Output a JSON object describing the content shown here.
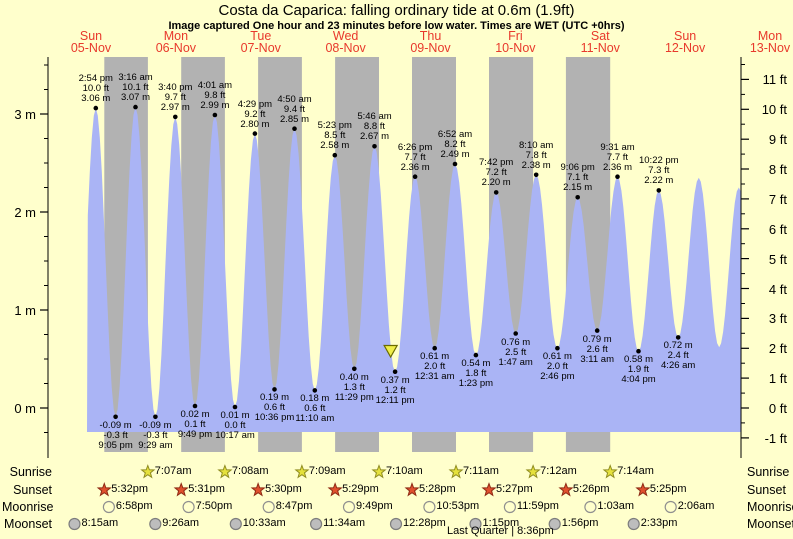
{
  "title": "Costa da Caparica: falling  ordinary tide at 0.6m (1.9ft)",
  "subtitle": "Image captured One hour and 23 minutes before low water. Times are WET (UTC +0hrs)",
  "days": [
    {
      "name": "Sun",
      "date": "05-Nov"
    },
    {
      "name": "Mon",
      "date": "06-Nov"
    },
    {
      "name": "Tue",
      "date": "07-Nov"
    },
    {
      "name": "Wed",
      "date": "08-Nov"
    },
    {
      "name": "Thu",
      "date": "09-Nov"
    },
    {
      "name": "Fri",
      "date": "10-Nov"
    },
    {
      "name": "Sat",
      "date": "11-Nov"
    },
    {
      "name": "Sun",
      "date": "12-Nov"
    },
    {
      "name": "Mon",
      "date": "13-Nov"
    }
  ],
  "chart_data": {
    "type": "area",
    "title": "Costa da Caparica: falling  ordinary tide at 0.6m (1.9ft)",
    "ylabel_left": "height (m)",
    "ylabel_right": "height (ft)",
    "ylim_m": [
      -0.45,
      3.6
    ],
    "y_axis_left_ticks": [
      "3 m",
      "2 m",
      "1 m",
      "0 m"
    ],
    "y_axis_right_ticks": [
      "11 ft",
      "10 ft",
      "9 ft",
      "8 ft",
      "7 ft",
      "6 ft",
      "5 ft",
      "4 ft",
      "3 ft",
      "2 ft",
      "1 ft",
      "0 ft",
      "-1 ft"
    ],
    "highs": [
      {
        "day": 0,
        "time": "2:54 pm",
        "ft": "10.0",
        "m": "3.06"
      },
      {
        "day": 1,
        "time": "3:16 am",
        "ft": "10.1",
        "m": "3.07"
      },
      {
        "day": 1,
        "time": "3:40 pm",
        "ft": "9.7",
        "m": "2.97"
      },
      {
        "day": 2,
        "time": "4:01 am",
        "ft": "9.8",
        "m": "2.99"
      },
      {
        "day": 2,
        "time": "4:29 pm",
        "ft": "9.2",
        "m": "2.80"
      },
      {
        "day": 3,
        "time": "4:50 am",
        "ft": "9.4",
        "m": "2.85"
      },
      {
        "day": 3,
        "time": "5:23 pm",
        "ft": "8.5",
        "m": "2.58"
      },
      {
        "day": 4,
        "time": "5:46 am",
        "ft": "8.8",
        "m": "2.67"
      },
      {
        "day": 4,
        "time": "6:26 pm",
        "ft": "7.7",
        "m": "2.36"
      },
      {
        "day": 5,
        "time": "6:52 am",
        "ft": "8.2",
        "m": "2.49"
      },
      {
        "day": 5,
        "time": "7:42 pm",
        "ft": "7.2",
        "m": "2.20"
      },
      {
        "day": 6,
        "time": "8:10 am",
        "ft": "7.8",
        "m": "2.38"
      },
      {
        "day": 6,
        "time": "9:06 pm",
        "ft": "7.1",
        "m": "2.15"
      },
      {
        "day": 7,
        "time": "9:31 am",
        "ft": "7.7",
        "m": "2.36"
      },
      {
        "day": 7,
        "time": "10:22 pm",
        "ft": "7.3",
        "m": "2.22"
      }
    ],
    "lows": [
      {
        "day": 0,
        "time": "9:05 pm",
        "ft": "-0.3",
        "m": "-0.09"
      },
      {
        "day": 1,
        "time": "9:29 am",
        "ft": "-0.3",
        "m": "-0.09"
      },
      {
        "day": 1,
        "time": "9:49 pm",
        "ft": "0.1",
        "m": "0.02"
      },
      {
        "day": 2,
        "time": "10:17 am",
        "ft": "0.0",
        "m": "0.01"
      },
      {
        "day": 2,
        "time": "10:36 pm",
        "ft": "0.6",
        "m": "0.19"
      },
      {
        "day": 3,
        "time": "11:10 am",
        "ft": "0.6",
        "m": "0.18"
      },
      {
        "day": 3,
        "time": "11:29 pm",
        "ft": "1.3",
        "m": "0.40"
      },
      {
        "day": 4,
        "time": "12:11 pm",
        "ft": "1.2",
        "m": "0.37"
      },
      {
        "day": 5,
        "time": "12:31 am",
        "ft": "2.0",
        "m": "0.61"
      },
      {
        "day": 5,
        "time": "1:23 pm",
        "ft": "1.8",
        "m": "0.54"
      },
      {
        "day": 6,
        "time": "1:47 am",
        "ft": "2.5",
        "m": "0.76"
      },
      {
        "day": 6,
        "time": "2:46 pm",
        "ft": "2.0",
        "m": "0.61"
      },
      {
        "day": 7,
        "time": "3:11 am",
        "ft": "2.6",
        "m": "0.79"
      },
      {
        "day": 7,
        "time": "4:04 pm",
        "ft": "1.9",
        "m": "0.58"
      },
      {
        "day": 8,
        "time": "4:26 am",
        "ft": "2.4",
        "m": "0.72"
      }
    ],
    "current_time_marker": {
      "day": 4,
      "hour": 10.8
    }
  },
  "astro": {
    "rows": [
      {
        "key": "sunrise",
        "label": "Sunrise",
        "icon": "sunrise-star",
        "entries": [
          {
            "day": 1,
            "time": "7:07am"
          },
          {
            "day": 2,
            "time": "7:08am"
          },
          {
            "day": 3,
            "time": "7:09am"
          },
          {
            "day": 4,
            "time": "7:10am"
          },
          {
            "day": 5,
            "time": "7:11am"
          },
          {
            "day": 6,
            "time": "7:12am"
          },
          {
            "day": 7,
            "time": "7:14am"
          }
        ]
      },
      {
        "key": "sunset",
        "label": "Sunset",
        "icon": "sunset-star",
        "entries": [
          {
            "day": 0,
            "time": "5:32pm"
          },
          {
            "day": 1,
            "time": "5:31pm"
          },
          {
            "day": 2,
            "time": "5:30pm"
          },
          {
            "day": 3,
            "time": "5:29pm"
          },
          {
            "day": 4,
            "time": "5:28pm"
          },
          {
            "day": 5,
            "time": "5:27pm"
          },
          {
            "day": 6,
            "time": "5:26pm"
          },
          {
            "day": 7,
            "time": "5:25pm"
          }
        ]
      },
      {
        "key": "moonrise",
        "label": "Moonrise",
        "icon": "moonrise-circle",
        "entries": [
          {
            "day": 0,
            "time": "6:58pm"
          },
          {
            "day": 1,
            "time": "7:50pm"
          },
          {
            "day": 2,
            "time": "8:47pm"
          },
          {
            "day": 3,
            "time": "9:49pm"
          },
          {
            "day": 4,
            "time": "10:53pm"
          },
          {
            "day": 5,
            "time": "11:59pm"
          },
          {
            "day": 7,
            "time": "1:03am"
          },
          {
            "day": 8,
            "time": "2:06am"
          }
        ]
      },
      {
        "key": "moonset",
        "label": "Moonset",
        "icon": "moonset-circle",
        "entries": [
          {
            "day": 0,
            "time": "8:15am"
          },
          {
            "day": 1,
            "time": "9:26am"
          },
          {
            "day": 2,
            "time": "10:33am"
          },
          {
            "day": 3,
            "time": "11:34am"
          },
          {
            "day": 4,
            "time": "12:28pm"
          },
          {
            "day": 5,
            "time": "1:15pm"
          },
          {
            "day": 6,
            "time": "1:56pm"
          },
          {
            "day": 7,
            "time": "2:33pm"
          }
        ]
      }
    ],
    "moon_phase": "Last Quarter | 8:36pm"
  },
  "colors": {
    "background": "#ffffcc",
    "night_band": "#b2b2b2",
    "tide_fill": "#aab4f5",
    "date_red": "#e8392c",
    "sunrise_star_fill": "#e5e13c",
    "sunrise_star_stroke": "#8f8c20",
    "sunset_star_fill": "#e0502d",
    "sunset_star_stroke": "#8e2a14",
    "moonrise_fill": "#ffffcc",
    "moonrise_stroke": "#8f8f8f",
    "moonset_fill": "#bdbdbd",
    "moonset_stroke": "#7d7d7d",
    "marker_triangle_fill": "#f0ee4a",
    "marker_triangle_stroke": "#6b6b00"
  }
}
